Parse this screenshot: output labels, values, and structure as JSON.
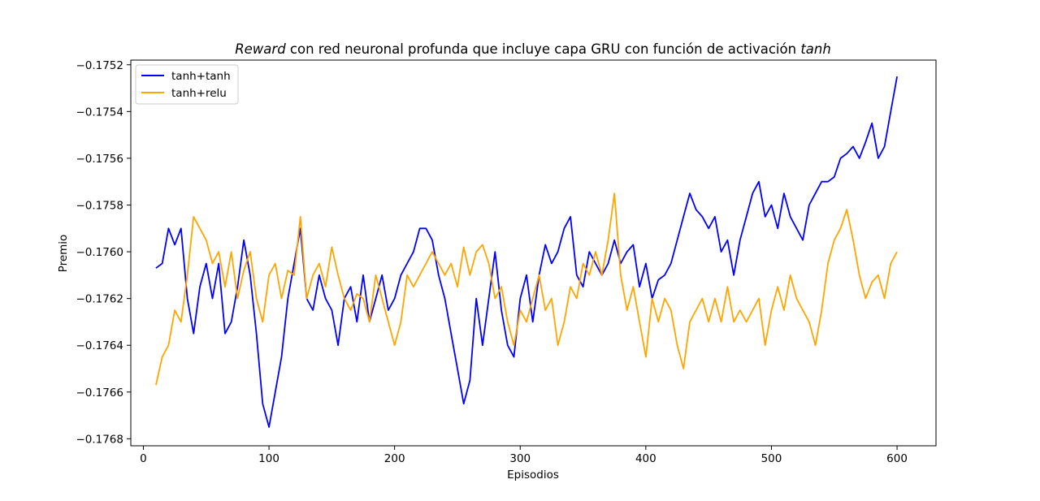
{
  "chart_data": {
    "type": "line",
    "title_parts": [
      {
        "text": "Reward",
        "italic": true
      },
      {
        "text": " con red neuronal profunda que incluye capa GRU con función de activación ",
        "italic": false
      },
      {
        "text": "tanh",
        "italic": true
      }
    ],
    "xlabel": "Episodios",
    "ylabel": "Premio",
    "xlim": [
      -10,
      631
    ],
    "ylim": [
      -0.17683,
      -0.17518
    ],
    "xticks": [
      0,
      100,
      200,
      300,
      400,
      500,
      600
    ],
    "xtick_labels": [
      "0",
      "100",
      "200",
      "300",
      "400",
      "500",
      "600"
    ],
    "yticks": [
      -0.1768,
      -0.1766,
      -0.1764,
      -0.1762,
      -0.176,
      -0.1758,
      -0.1756,
      -0.1754,
      -0.1752
    ],
    "ytick_labels": [
      "−0.1768",
      "−0.1766",
      "−0.1764",
      "−0.1762",
      "−0.1760",
      "−0.1758",
      "−0.1756",
      "−0.1754",
      "−0.1752"
    ],
    "grid": false,
    "legend_position": "upper-left",
    "series": [
      {
        "name": "tanh+tanh",
        "color": "#0000ff",
        "x": [
          10,
          15,
          20,
          25,
          30,
          35,
          40,
          45,
          50,
          55,
          60,
          65,
          70,
          75,
          80,
          85,
          90,
          95,
          100,
          105,
          110,
          115,
          120,
          125,
          130,
          135,
          140,
          145,
          150,
          155,
          160,
          165,
          170,
          175,
          180,
          185,
          190,
          195,
          200,
          205,
          210,
          215,
          220,
          225,
          230,
          235,
          240,
          245,
          250,
          255,
          260,
          265,
          270,
          275,
          280,
          285,
          290,
          295,
          300,
          305,
          310,
          315,
          320,
          325,
          330,
          335,
          340,
          345,
          350,
          355,
          360,
          365,
          370,
          375,
          380,
          385,
          390,
          395,
          400,
          405,
          410,
          415,
          420,
          425,
          430,
          435,
          440,
          445,
          450,
          455,
          460,
          465,
          470,
          475,
          480,
          485,
          490,
          495,
          500,
          505,
          510,
          515,
          520,
          525,
          530,
          535,
          540,
          545,
          550,
          555,
          560,
          565,
          570,
          575,
          580,
          585,
          590,
          595,
          600
        ],
        "values": [
          -0.17607,
          -0.17605,
          -0.1759,
          -0.17597,
          -0.1759,
          -0.1762,
          -0.17635,
          -0.17615,
          -0.17605,
          -0.1762,
          -0.17605,
          -0.17635,
          -0.1763,
          -0.17615,
          -0.17595,
          -0.1761,
          -0.17635,
          -0.17665,
          -0.17675,
          -0.1766,
          -0.17645,
          -0.1762,
          -0.17605,
          -0.1759,
          -0.1762,
          -0.17625,
          -0.1761,
          -0.1762,
          -0.17625,
          -0.1764,
          -0.1762,
          -0.17615,
          -0.1763,
          -0.1761,
          -0.1763,
          -0.1762,
          -0.1761,
          -0.17625,
          -0.1762,
          -0.1761,
          -0.17605,
          -0.176,
          -0.1759,
          -0.1759,
          -0.17595,
          -0.1761,
          -0.1762,
          -0.17635,
          -0.1765,
          -0.17665,
          -0.17655,
          -0.1762,
          -0.1764,
          -0.1762,
          -0.176,
          -0.17625,
          -0.1764,
          -0.17645,
          -0.1762,
          -0.1761,
          -0.1763,
          -0.1761,
          -0.17597,
          -0.17605,
          -0.176,
          -0.1759,
          -0.17585,
          -0.1761,
          -0.17615,
          -0.176,
          -0.17605,
          -0.1761,
          -0.17605,
          -0.17595,
          -0.17605,
          -0.176,
          -0.17597,
          -0.17615,
          -0.17605,
          -0.1762,
          -0.17612,
          -0.1761,
          -0.17605,
          -0.17595,
          -0.17585,
          -0.17575,
          -0.17582,
          -0.17585,
          -0.1759,
          -0.17585,
          -0.176,
          -0.17595,
          -0.1761,
          -0.17595,
          -0.17585,
          -0.17575,
          -0.1757,
          -0.17585,
          -0.1758,
          -0.1759,
          -0.17575,
          -0.17585,
          -0.1759,
          -0.17595,
          -0.1758,
          -0.17575,
          -0.1757,
          -0.1757,
          -0.17568,
          -0.1756,
          -0.17558,
          -0.17555,
          -0.1756,
          -0.17553,
          -0.17545,
          -0.1756,
          -0.17555,
          -0.1754,
          -0.17525
        ]
      },
      {
        "name": "tanh+relu",
        "color": "#ffa500",
        "x": [
          10,
          15,
          20,
          25,
          30,
          35,
          40,
          45,
          50,
          55,
          60,
          65,
          70,
          75,
          80,
          85,
          90,
          95,
          100,
          105,
          110,
          115,
          120,
          125,
          130,
          135,
          140,
          145,
          150,
          155,
          160,
          165,
          170,
          175,
          180,
          185,
          190,
          195,
          200,
          205,
          210,
          215,
          220,
          225,
          230,
          235,
          240,
          245,
          250,
          255,
          260,
          265,
          270,
          275,
          280,
          285,
          290,
          295,
          300,
          305,
          310,
          315,
          320,
          325,
          330,
          335,
          340,
          345,
          350,
          355,
          360,
          365,
          370,
          375,
          380,
          385,
          390,
          395,
          400,
          405,
          410,
          415,
          420,
          425,
          430,
          435,
          440,
          445,
          450,
          455,
          460,
          465,
          470,
          475,
          480,
          485,
          490,
          495,
          500,
          505,
          510,
          515,
          520,
          525,
          530,
          535,
          540,
          545,
          550,
          555,
          560,
          565,
          570,
          575,
          580,
          585,
          590,
          595,
          600
        ],
        "values": [
          -0.17657,
          -0.17645,
          -0.1764,
          -0.17625,
          -0.1763,
          -0.1761,
          -0.17585,
          -0.1759,
          -0.17595,
          -0.17605,
          -0.176,
          -0.17615,
          -0.176,
          -0.1762,
          -0.17608,
          -0.176,
          -0.1762,
          -0.1763,
          -0.1761,
          -0.17605,
          -0.1762,
          -0.17608,
          -0.1761,
          -0.17585,
          -0.1762,
          -0.1761,
          -0.17605,
          -0.17615,
          -0.17598,
          -0.1761,
          -0.1762,
          -0.17625,
          -0.17618,
          -0.1762,
          -0.1763,
          -0.1761,
          -0.1762,
          -0.1763,
          -0.1764,
          -0.1763,
          -0.1761,
          -0.17615,
          -0.1761,
          -0.17605,
          -0.176,
          -0.17605,
          -0.1761,
          -0.17605,
          -0.17615,
          -0.17598,
          -0.1761,
          -0.176,
          -0.17597,
          -0.17605,
          -0.1762,
          -0.17615,
          -0.1763,
          -0.1764,
          -0.17625,
          -0.1763,
          -0.1762,
          -0.1761,
          -0.17625,
          -0.1762,
          -0.1764,
          -0.1763,
          -0.17615,
          -0.1762,
          -0.17605,
          -0.1761,
          -0.176,
          -0.1761,
          -0.17595,
          -0.17575,
          -0.1761,
          -0.17625,
          -0.17615,
          -0.1763,
          -0.17645,
          -0.1762,
          -0.1763,
          -0.1762,
          -0.17625,
          -0.1764,
          -0.1765,
          -0.1763,
          -0.17625,
          -0.1762,
          -0.1763,
          -0.1762,
          -0.1763,
          -0.17615,
          -0.1763,
          -0.17625,
          -0.1763,
          -0.17625,
          -0.1762,
          -0.1764,
          -0.17625,
          -0.17615,
          -0.17625,
          -0.1761,
          -0.1762,
          -0.17625,
          -0.1763,
          -0.1764,
          -0.17625,
          -0.17605,
          -0.17595,
          -0.1759,
          -0.17582,
          -0.17595,
          -0.1761,
          -0.1762,
          -0.17613,
          -0.1761,
          -0.1762,
          -0.17605,
          -0.176
        ]
      }
    ]
  }
}
